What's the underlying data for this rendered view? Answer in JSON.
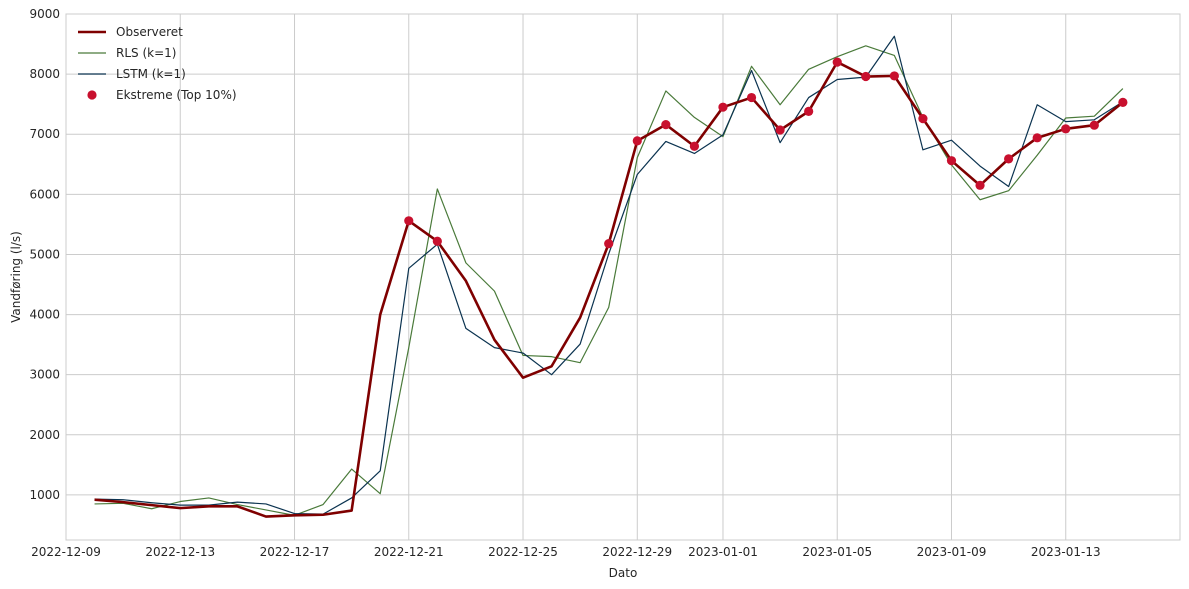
{
  "chart_data": {
    "type": "line",
    "title": "",
    "xlabel": "Dato",
    "ylabel": "Vandføring (l/s)",
    "ylim": [
      250,
      9000
    ],
    "xlim": [
      "2022-12-09",
      "2023-01-17"
    ],
    "grid": true,
    "legend_position": "top-left",
    "x_ticks": [
      "2022-12-09",
      "2022-12-13",
      "2022-12-17",
      "2022-12-21",
      "2022-12-25",
      "2022-12-29",
      "2023-01-01",
      "2023-01-05",
      "2023-01-09",
      "2023-01-13"
    ],
    "y_ticks": [
      1000,
      2000,
      3000,
      4000,
      5000,
      6000,
      7000,
      8000,
      9000
    ],
    "x": [
      "2022-12-10",
      "2022-12-11",
      "2022-12-12",
      "2022-12-13",
      "2022-12-14",
      "2022-12-15",
      "2022-12-16",
      "2022-12-17",
      "2022-12-18",
      "2022-12-19",
      "2022-12-20",
      "2022-12-21",
      "2022-12-22",
      "2022-12-23",
      "2022-12-24",
      "2022-12-25",
      "2022-12-26",
      "2022-12-27",
      "2022-12-28",
      "2022-12-29",
      "2022-12-30",
      "2022-12-31",
      "2023-01-01",
      "2023-01-02",
      "2023-01-03",
      "2023-01-04",
      "2023-01-05",
      "2023-01-06",
      "2023-01-07",
      "2023-01-08",
      "2023-01-09",
      "2023-01-10",
      "2023-01-11",
      "2023-01-12",
      "2023-01-13",
      "2023-01-14",
      "2023-01-15"
    ],
    "series": [
      {
        "name": "Observeret",
        "color": "#7f0000",
        "style": "line-thick",
        "values": [
          920,
          880,
          830,
          780,
          810,
          810,
          640,
          660,
          670,
          740,
          4000,
          5560,
          5220,
          4560,
          3580,
          2950,
          3140,
          3950,
          5180,
          6890,
          7160,
          6800,
          7450,
          7610,
          7070,
          7380,
          8200,
          7960,
          7970,
          7260,
          6560,
          6150,
          6590,
          6940,
          7090,
          7150,
          7530
        ]
      },
      {
        "name": "RLS (k=1)",
        "color": "#4a7a3a",
        "style": "line",
        "values": [
          850,
          860,
          770,
          890,
          950,
          840,
          750,
          660,
          840,
          1430,
          1020,
          3450,
          6090,
          4860,
          4390,
          3320,
          3300,
          3200,
          4120,
          6610,
          7720,
          7280,
          6960,
          8130,
          7490,
          8080,
          8290,
          8470,
          8310,
          7280,
          6490,
          5910,
          6060,
          6650,
          7270,
          7300,
          7760
        ]
      },
      {
        "name": "LSTM (k=1)",
        "color": "#0b3350",
        "style": "line",
        "values": [
          930,
          920,
          870,
          830,
          830,
          880,
          850,
          690,
          680,
          950,
          1400,
          4770,
          5170,
          3770,
          3450,
          3360,
          3000,
          3510,
          5010,
          6330,
          6880,
          6680,
          6990,
          8060,
          6860,
          7610,
          7910,
          7950,
          8630,
          6740,
          6900,
          6470,
          6130,
          7490,
          7210,
          7240,
          7540
        ]
      },
      {
        "name": "Ekstreme (Top 10%)",
        "color": "#c8102e",
        "style": "marker",
        "x": [
          "2022-12-21",
          "2022-12-22",
          "2022-12-28",
          "2022-12-29",
          "2022-12-30",
          "2022-12-31",
          "2023-01-01",
          "2023-01-02",
          "2023-01-03",
          "2023-01-04",
          "2023-01-05",
          "2023-01-06",
          "2023-01-07",
          "2023-01-08",
          "2023-01-09",
          "2023-01-10",
          "2023-01-11",
          "2023-01-12",
          "2023-01-13",
          "2023-01-14",
          "2023-01-15"
        ],
        "values": [
          5560,
          5220,
          5180,
          6890,
          7160,
          6800,
          7450,
          7610,
          7070,
          7380,
          8200,
          7960,
          7970,
          7260,
          6560,
          6150,
          6590,
          6940,
          7090,
          7150,
          7530
        ]
      }
    ]
  }
}
